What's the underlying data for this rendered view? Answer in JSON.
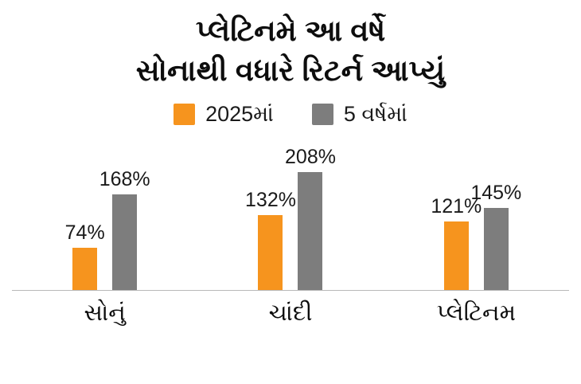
{
  "title": {
    "line1": "પ્લેટિનમે આ વર્ષે",
    "line2": "સોનાથી વધારે રિટર્ન આપ્યું"
  },
  "legend": [
    {
      "label": "2025માં",
      "color": "#F6941E"
    },
    {
      "label": "5 વર્ષમાં",
      "color": "#7D7D7D"
    }
  ],
  "colors": {
    "series_2025": "#F6941E",
    "series_5yr": "#7D7D7D",
    "axis": "#b9b9b9",
    "text": "#111111"
  },
  "chart_data": {
    "type": "bar",
    "title": "પ્લેટિનમે આ વર્ષે સોનાથી વધારે રિટર્ન આપ્યું",
    "categories": [
      "સોનું",
      "ચાંદી",
      "પ્લેટિનમ"
    ],
    "series": [
      {
        "name": "2025માં",
        "color": "#F6941E",
        "values": [
          74,
          132,
          121
        ]
      },
      {
        "name": "5 વર્ષમાં",
        "color": "#7D7D7D",
        "values": [
          168,
          208,
          145
        ]
      }
    ],
    "value_suffix": "%",
    "xlabel": "",
    "ylabel": "",
    "ylim": [
      0,
      208
    ],
    "grid": false,
    "legend_position": "top",
    "data_labels": true
  }
}
